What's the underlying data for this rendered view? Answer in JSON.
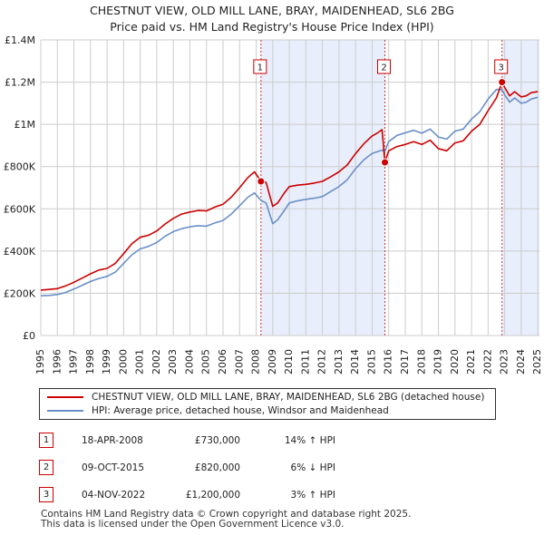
{
  "title_line1": "CHESTNUT VIEW, OLD MILL LANE, BRAY, MAIDENHEAD, SL6 2BG",
  "title_line2": "Price paid vs. HM Land Registry's House Price Index (HPI)",
  "colors": {
    "property": "#cc0000",
    "hpi": "#6a8fc8",
    "shade": "#e8eefb",
    "grid": "#cccccc",
    "marker_line": "#cc3333"
  },
  "chart_data": {
    "type": "line",
    "title": "CHESTNUT VIEW, OLD MILL LANE, BRAY, MAIDENHEAD, SL6 2BG — Price paid vs. HM Land Registry's House Price Index (HPI)",
    "xlabel": "",
    "ylabel": "",
    "xlim": [
      1995.0,
      2025.1
    ],
    "ylim": [
      0,
      1400000
    ],
    "y_ticks": [
      0,
      200000,
      400000,
      600000,
      800000,
      1000000,
      1200000,
      1400000
    ],
    "y_tick_labels": [
      "£0",
      "£200K",
      "£400K",
      "£600K",
      "£800K",
      "£1M",
      "£1.2M",
      "£1.4M"
    ],
    "x_ticks": [
      1995,
      1996,
      1997,
      1998,
      1999,
      2000,
      2001,
      2002,
      2003,
      2004,
      2005,
      2006,
      2007,
      2008,
      2009,
      2010,
      2011,
      2012,
      2013,
      2014,
      2015,
      2016,
      2017,
      2018,
      2019,
      2020,
      2021,
      2022,
      2023,
      2024,
      2025
    ],
    "x_tick_labels": [
      "1995",
      "1996",
      "1997",
      "1998",
      "1999",
      "2000",
      "2001",
      "2002",
      "2003",
      "2004",
      "2005",
      "2006",
      "2007",
      "2008",
      "2009",
      "2010",
      "2011",
      "2012",
      "2013",
      "2014",
      "2015",
      "2016",
      "2017",
      "2018",
      "2019",
      "2020",
      "2021",
      "2022",
      "2023",
      "2024",
      "2025"
    ],
    "grid": true,
    "shaded_periods": [
      [
        2008.29,
        2015.77
      ],
      [
        2022.84,
        2025.1
      ]
    ],
    "series": [
      {
        "name": "CHESTNUT VIEW, OLD MILL LANE, BRAY, MAIDENHEAD, SL6 2BG (detached house)",
        "x": [
          1995.0,
          1995.5,
          1996.0,
          1996.5,
          1997.0,
          1997.5,
          1998.0,
          1998.5,
          1999.0,
          1999.5,
          2000.0,
          2000.5,
          2001.0,
          2001.5,
          2002.0,
          2002.5,
          2003.0,
          2003.5,
          2004.0,
          2004.5,
          2005.0,
          2005.5,
          2006.0,
          2006.5,
          2007.0,
          2007.5,
          2007.9,
          2008.29,
          2008.6,
          2009.0,
          2009.3,
          2009.7,
          2010.0,
          2010.5,
          2011.0,
          2011.5,
          2012.0,
          2012.5,
          2013.0,
          2013.5,
          2014.0,
          2014.5,
          2015.0,
          2015.3,
          2015.6,
          2015.77,
          2016.0,
          2016.5,
          2017.0,
          2017.5,
          2018.0,
          2018.5,
          2019.0,
          2019.5,
          2020.0,
          2020.5,
          2021.0,
          2021.5,
          2022.0,
          2022.5,
          2022.84,
          2023.0,
          2023.3,
          2023.6,
          2024.0,
          2024.3,
          2024.6,
          2025.0
        ],
        "values": [
          215000,
          218000,
          222000,
          235000,
          252000,
          272000,
          292000,
          310000,
          318000,
          342000,
          388000,
          435000,
          465000,
          475000,
          495000,
          528000,
          555000,
          575000,
          585000,
          592000,
          590000,
          608000,
          622000,
          655000,
          700000,
          748000,
          775000,
          730000,
          725000,
          612000,
          628000,
          675000,
          705000,
          712000,
          716000,
          722000,
          730000,
          752000,
          775000,
          808000,
          862000,
          908000,
          945000,
          958000,
          975000,
          820000,
          875000,
          895000,
          905000,
          918000,
          905000,
          925000,
          885000,
          875000,
          912000,
          922000,
          968000,
          1000000,
          1065000,
          1125000,
          1200000,
          1175000,
          1135000,
          1155000,
          1130000,
          1135000,
          1150000,
          1155000
        ]
      },
      {
        "name": "HPI: Average price, detached house, Windsor and Maidenhead",
        "x": [
          1995.0,
          1995.5,
          1996.0,
          1996.5,
          1997.0,
          1997.5,
          1998.0,
          1998.5,
          1999.0,
          1999.5,
          2000.0,
          2000.5,
          2001.0,
          2001.5,
          2002.0,
          2002.5,
          2003.0,
          2003.5,
          2004.0,
          2004.5,
          2005.0,
          2005.5,
          2006.0,
          2006.5,
          2007.0,
          2007.5,
          2007.9,
          2008.29,
          2008.6,
          2009.0,
          2009.3,
          2009.7,
          2010.0,
          2010.5,
          2011.0,
          2011.5,
          2012.0,
          2012.5,
          2013.0,
          2013.5,
          2014.0,
          2014.5,
          2015.0,
          2015.3,
          2015.6,
          2015.77,
          2016.0,
          2016.5,
          2017.0,
          2017.5,
          2018.0,
          2018.5,
          2019.0,
          2019.5,
          2020.0,
          2020.5,
          2021.0,
          2021.5,
          2022.0,
          2022.5,
          2022.84,
          2023.0,
          2023.3,
          2023.6,
          2024.0,
          2024.3,
          2024.6,
          2025.0
        ],
        "values": [
          188000,
          190000,
          194000,
          204000,
          220000,
          238000,
          256000,
          270000,
          280000,
          300000,
          342000,
          382000,
          410000,
          422000,
          440000,
          470000,
          492000,
          506000,
          515000,
          520000,
          518000,
          533000,
          545000,
          575000,
          615000,
          655000,
          675000,
          640000,
          628000,
          530000,
          548000,
          592000,
          628000,
          638000,
          645000,
          650000,
          658000,
          682000,
          705000,
          738000,
          790000,
          832000,
          862000,
          870000,
          878000,
          872000,
          918000,
          948000,
          960000,
          972000,
          958000,
          978000,
          940000,
          930000,
          968000,
          978000,
          1025000,
          1060000,
          1120000,
          1165000,
          1165000,
          1140000,
          1105000,
          1125000,
          1100000,
          1105000,
          1120000,
          1128000
        ]
      }
    ],
    "sale_markers": [
      {
        "label": "1",
        "x": 2008.29,
        "value": 730000
      },
      {
        "label": "2",
        "x": 2015.77,
        "value": 820000
      },
      {
        "label": "3",
        "x": 2022.84,
        "value": 1200000
      }
    ]
  },
  "legend": {
    "property_label": "CHESTNUT VIEW, OLD MILL LANE, BRAY, MAIDENHEAD, SL6 2BG (detached house)",
    "hpi_label": "HPI: Average price, detached house, Windsor and Maidenhead"
  },
  "sales": [
    {
      "num": "1",
      "date": "18-APR-2008",
      "price": "£730,000",
      "hpi": "14% ↑ HPI"
    },
    {
      "num": "2",
      "date": "09-OCT-2015",
      "price": "£820,000",
      "hpi": "6% ↓ HPI"
    },
    {
      "num": "3",
      "date": "04-NOV-2022",
      "price": "£1,200,000",
      "hpi": "3% ↑ HPI"
    }
  ],
  "footer": {
    "line1": "Contains HM Land Registry data © Crown copyright and database right 2025.",
    "line2": "This data is licensed under the Open Government Licence v3.0."
  }
}
